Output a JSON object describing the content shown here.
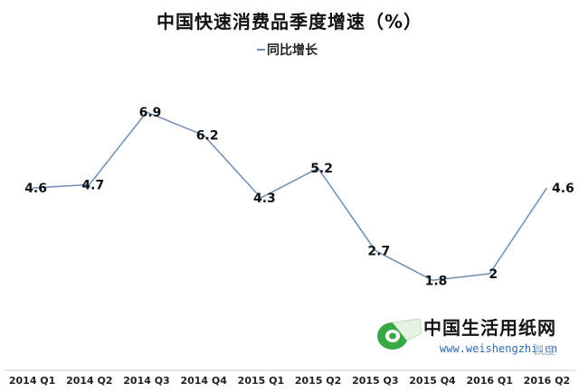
{
  "chart_data": {
    "type": "line",
    "title": "中国快速消费品季度增速（%）",
    "categories": [
      "2014 Q1",
      "2014 Q2",
      "2014 Q3",
      "2014 Q4",
      "2015 Q1",
      "2015 Q2",
      "2015 Q3",
      "2015 Q4",
      "2016 Q1",
      "2016 Q2"
    ],
    "series": [
      {
        "name": "同比增长",
        "values": [
          4.6,
          4.7,
          6.9,
          6.2,
          4.3,
          5.2,
          2.7,
          1.8,
          2,
          4.6
        ]
      }
    ],
    "data_labels": [
      "4.6",
      "4.7",
      "6.9",
      "6.2",
      "4.3",
      "5.2",
      "2.7",
      "1.8",
      "2",
      "4.6"
    ],
    "ylim": [
      0,
      10
    ],
    "legend_position": "top-center",
    "grid": false,
    "line_color": "#6f8db3"
  },
  "watermark": {
    "name": "中国生活用纸网",
    "url": "www.weishengzhi.cn",
    "tag": "凯度"
  }
}
